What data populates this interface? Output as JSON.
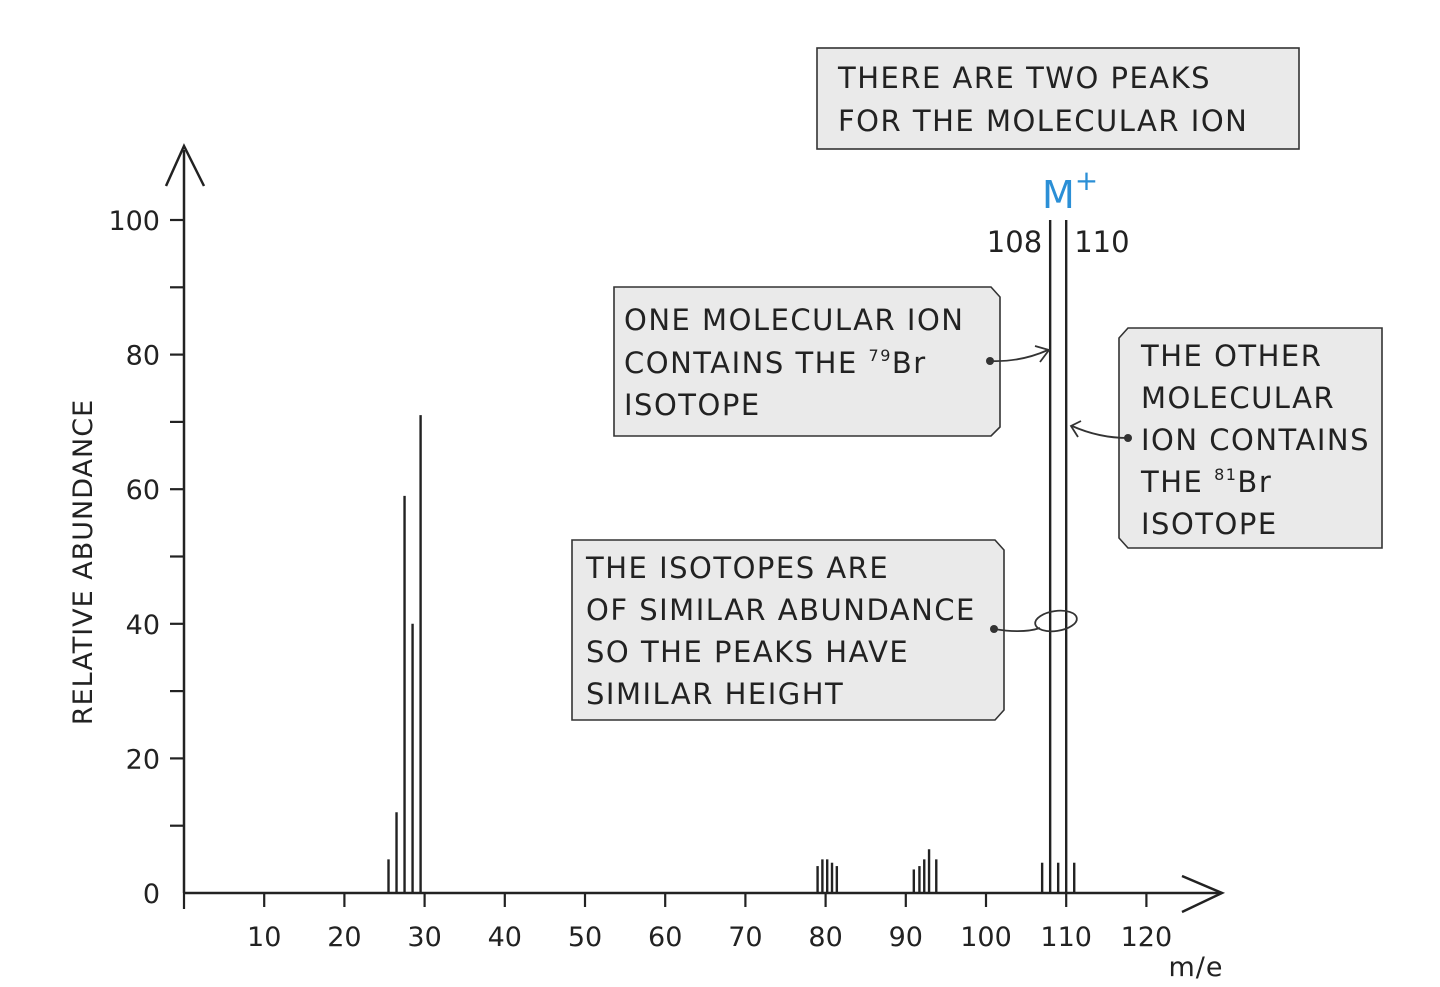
{
  "chart_data": {
    "type": "bar",
    "xlabel": "m/e",
    "ylabel": "RELATIVE ABUNDANCE",
    "xlim": [
      0,
      128
    ],
    "ylim": [
      0,
      100
    ],
    "x_ticks": [
      10,
      20,
      30,
      40,
      50,
      60,
      70,
      80,
      90,
      100,
      110,
      120
    ],
    "y_ticks": [
      0,
      20,
      40,
      60,
      80,
      100
    ],
    "peaks": [
      {
        "x": 25.5,
        "y": 5
      },
      {
        "x": 26.5,
        "y": 12
      },
      {
        "x": 27.5,
        "y": 59
      },
      {
        "x": 28.5,
        "y": 40
      },
      {
        "x": 29.5,
        "y": 71
      },
      {
        "x": 79,
        "y": 4
      },
      {
        "x": 79.6,
        "y": 5
      },
      {
        "x": 80.2,
        "y": 5
      },
      {
        "x": 80.8,
        "y": 4.5
      },
      {
        "x": 81.4,
        "y": 4
      },
      {
        "x": 91,
        "y": 3.5
      },
      {
        "x": 91.7,
        "y": 4
      },
      {
        "x": 92.3,
        "y": 5
      },
      {
        "x": 92.9,
        "y": 6.5
      },
      {
        "x": 93.8,
        "y": 5
      },
      {
        "x": 107,
        "y": 4.5
      },
      {
        "x": 108,
        "y": 100
      },
      {
        "x": 109,
        "y": 4.5
      },
      {
        "x": 110,
        "y": 100
      },
      {
        "x": 111,
        "y": 4.5
      }
    ],
    "peak_labels": [
      {
        "x": 108,
        "text": "108"
      },
      {
        "x": 110,
        "text": "110"
      }
    ],
    "ion_label": {
      "text": "M",
      "superscript": "+"
    },
    "annotations": {
      "top": [
        "THERE  ARE  TWO  PEAKS",
        "FOR  THE  MOLECULAR  ION"
      ],
      "left": {
        "line1": "ONE  MOLECULAR  ION",
        "line2_pre": "CONTAINS  THE  ",
        "line2_sup": "79",
        "line2_post": "Br",
        "line3": "ISOTOPE"
      },
      "right": {
        "line1": "THE  OTHER",
        "line2": "MOLECULAR",
        "line3": "ION  CONTAINS",
        "line4_pre": "THE  ",
        "line4_sup": "81",
        "line4_post": "Br",
        "line5": "ISOTOPE"
      },
      "bottom": [
        "THE  ISOTOPES  ARE",
        "OF  SIMILAR  ABUNDANCE",
        "SO  THE  PEAKS  HAVE",
        "SIMILAR  HEIGHT"
      ]
    },
    "colors": {
      "ion_label": "#2b8fd6",
      "box_fill": "#eaeaea",
      "lines": "#222222"
    }
  }
}
